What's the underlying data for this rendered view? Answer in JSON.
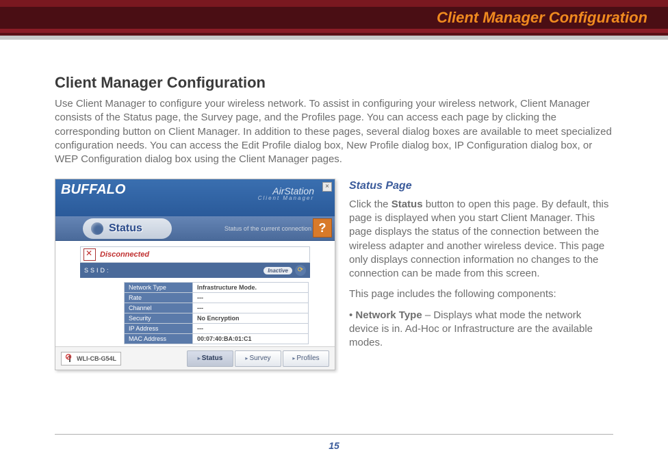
{
  "header": {
    "title": "Client Manager Configuration"
  },
  "section": {
    "title": "Client Manager Configuration",
    "intro": "Use Client Manager to configure your wireless network. To assist in configuring your wireless network, Client Manager consists of the Status page, the Survey page, and the Profiles page. You can access each page by clicking the corresponding button on Client Manager. In addition to these pages, several dialog boxes are available to meet specialized configuration needs. You can access the Edit Profile dialog box, New Profile dialog box, IP Configuration dialog box, or WEP Configuration dialog box using the Client Manager pages."
  },
  "screenshot": {
    "brand": "BUFFALO",
    "product_line1": "AirStation",
    "product_line2": "Client Manager",
    "status_label": "Status",
    "status_subtitle": "Status of the current connection",
    "help": "?",
    "close": "×",
    "disconnected": "Disconnected",
    "ssid_key": "SSID:",
    "inactive": "Inactive",
    "refresh": "⟳",
    "rows": [
      {
        "k": "Network Type",
        "v": "Infrastructure Mode."
      },
      {
        "k": "Rate",
        "v": "---"
      },
      {
        "k": "Channel",
        "v": "---"
      },
      {
        "k": "Security",
        "v": "No Encryption"
      },
      {
        "k": "IP Address",
        "v": "---"
      },
      {
        "k": "MAC Address",
        "v": "00:07:40:BA:01:C1"
      }
    ],
    "model": "WLI-CB-G54L",
    "btn_status": "Status",
    "btn_survey": "Survey",
    "btn_profiles": "Profiles"
  },
  "right": {
    "heading": "Status Page",
    "p1a": "Click the ",
    "p1b": "Status",
    "p1c": " button to open this page. By default, this page is displayed when you start Client Manager. This page displays the status of the connection between the wireless adapter and another wireless device. This page only displays connection information no changes to the connection can be made from this screen.",
    "p2": "This page includes the following components:",
    "p3a": "• ",
    "p3b": "Network Type",
    "p3c": " – Displays what mode the network device is in.  Ad-Hoc or Infrastructure are the available modes."
  },
  "page": "15"
}
